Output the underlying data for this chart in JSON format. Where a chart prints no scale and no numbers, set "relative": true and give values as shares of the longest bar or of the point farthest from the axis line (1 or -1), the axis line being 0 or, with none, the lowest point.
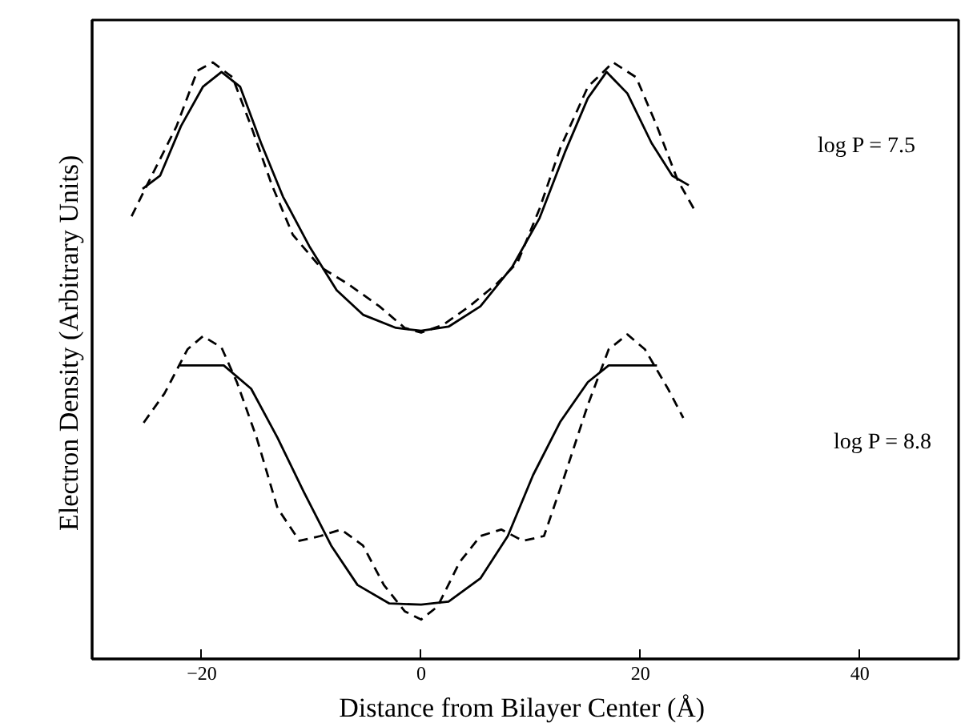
{
  "chart_data": {
    "type": "line",
    "relative": true,
    "xlabel": "Distance from Bilayer Center  (Å)",
    "ylabel": "Electron Density  (Arbitrary Units)",
    "xlim": [
      -30,
      49
    ],
    "xticks": [
      -20,
      0,
      20,
      40
    ],
    "grid": false,
    "marker": "none",
    "annotations": [
      "log P = 7.5",
      "log P = 8.8"
    ],
    "series": [
      {
        "color": "#000000",
        "line_style": "solid",
        "x": [
          -25.4,
          -23.8,
          -21.9,
          -19.9,
          -18.2,
          -16.5,
          -14.6,
          -12.6,
          -10.2,
          -7.7,
          -5.3,
          -2.3,
          0,
          2.5,
          5.4,
          8.3,
          10.8,
          13.1,
          15.2,
          16.9,
          18.8,
          21,
          22.9,
          24.4
        ],
        "values": [
          0.788,
          0.81,
          0.893,
          0.959,
          0.984,
          0.959,
          0.865,
          0.775,
          0.692,
          0.618,
          0.577,
          0.555,
          0.55,
          0.557,
          0.591,
          0.657,
          0.739,
          0.849,
          0.94,
          0.984,
          0.948,
          0.865,
          0.81,
          0.794
        ]
      },
      {
        "color": "#000000",
        "line_style": "dashed",
        "x": [
          -26.4,
          -25,
          -22.3,
          -20.4,
          -19,
          -17.2,
          -15.5,
          -13.6,
          -11.7,
          -9.2,
          -6.7,
          -3.8,
          -1.5,
          0,
          2,
          4.4,
          6.9,
          8.8,
          10.8,
          12.7,
          15.2,
          17.5,
          19.6,
          21.5,
          23.4,
          25.1
        ],
        "values": [
          0.742,
          0.794,
          0.893,
          0.986,
          1.0,
          0.975,
          0.893,
          0.794,
          0.711,
          0.657,
          0.629,
          0.591,
          0.555,
          0.547,
          0.56,
          0.591,
          0.629,
          0.665,
          0.755,
          0.857,
          0.959,
          1.0,
          0.975,
          0.893,
          0.802,
          0.747
        ]
      },
      {
        "color": "#000000",
        "line_style": "solid",
        "x": [
          -22,
          -18,
          -15.5,
          -13.1,
          -10.7,
          -8.2,
          -5.8,
          -2.9,
          0,
          2.5,
          5.4,
          7.9,
          10.2,
          12.7,
          15.2,
          17.1,
          21.5
        ],
        "values": [
          0.492,
          0.492,
          0.453,
          0.371,
          0.28,
          0.19,
          0.124,
          0.093,
          0.091,
          0.096,
          0.135,
          0.206,
          0.308,
          0.398,
          0.464,
          0.492,
          0.492
        ]
      },
      {
        "color": "#000000",
        "line_style": "dashed",
        "x": [
          -25.3,
          -23.4,
          -21.3,
          -19.9,
          -18.2,
          -16.8,
          -15,
          -13.1,
          -11.1,
          -9.2,
          -7.3,
          -5.3,
          -3.4,
          -1.5,
          0,
          1.5,
          3.5,
          5.4,
          7.3,
          9.3,
          11.2,
          13.1,
          15.2,
          17.1,
          18.8,
          20.4,
          22.5,
          23.9
        ],
        "values": [
          0.396,
          0.445,
          0.519,
          0.541,
          0.522,
          0.464,
          0.371,
          0.253,
          0.198,
          0.206,
          0.217,
          0.19,
          0.124,
          0.08,
          0.066,
          0.088,
          0.162,
          0.206,
          0.217,
          0.198,
          0.206,
          0.308,
          0.426,
          0.519,
          0.544,
          0.519,
          0.453,
          0.404
        ]
      }
    ]
  }
}
